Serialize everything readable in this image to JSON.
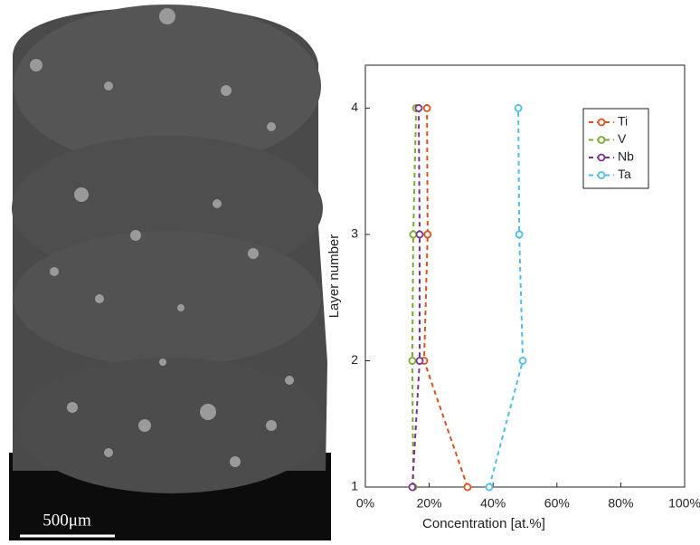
{
  "scale_bar": {
    "label": "500μm"
  },
  "chart_data": {
    "type": "line",
    "xlabel": "Concentration [at.%]",
    "ylabel": "Layer number",
    "y": [
      1,
      2,
      3,
      4
    ],
    "series": [
      {
        "name": "Ti",
        "color": "#d95319",
        "values": [
          32,
          18.4,
          19.5,
          19.3
        ]
      },
      {
        "name": "V",
        "color": "#77ac30",
        "values": [
          15,
          14.7,
          15,
          15.9
        ]
      },
      {
        "name": "Nb",
        "color": "#7e2f8e",
        "values": [
          14.7,
          17,
          17,
          16.7
        ]
      },
      {
        "name": "Ta",
        "color": "#4dbeee",
        "values": [
          38.8,
          49.3,
          48.2,
          47.9
        ]
      }
    ],
    "xlim": [
      0,
      100
    ],
    "xticks": [
      {
        "value": 0,
        "label": "0%"
      },
      {
        "value": 20,
        "label": "20%"
      },
      {
        "value": 40,
        "label": "40%"
      },
      {
        "value": 60,
        "label": "60%"
      },
      {
        "value": 80,
        "label": "80%"
      },
      {
        "value": 100,
        "label": "100%"
      }
    ],
    "ylim": [
      1,
      4.34
    ],
    "yticks": [
      1,
      2,
      3,
      4
    ],
    "legend": "upper-right",
    "line_style": "dashed",
    "marker": "open-circle"
  }
}
